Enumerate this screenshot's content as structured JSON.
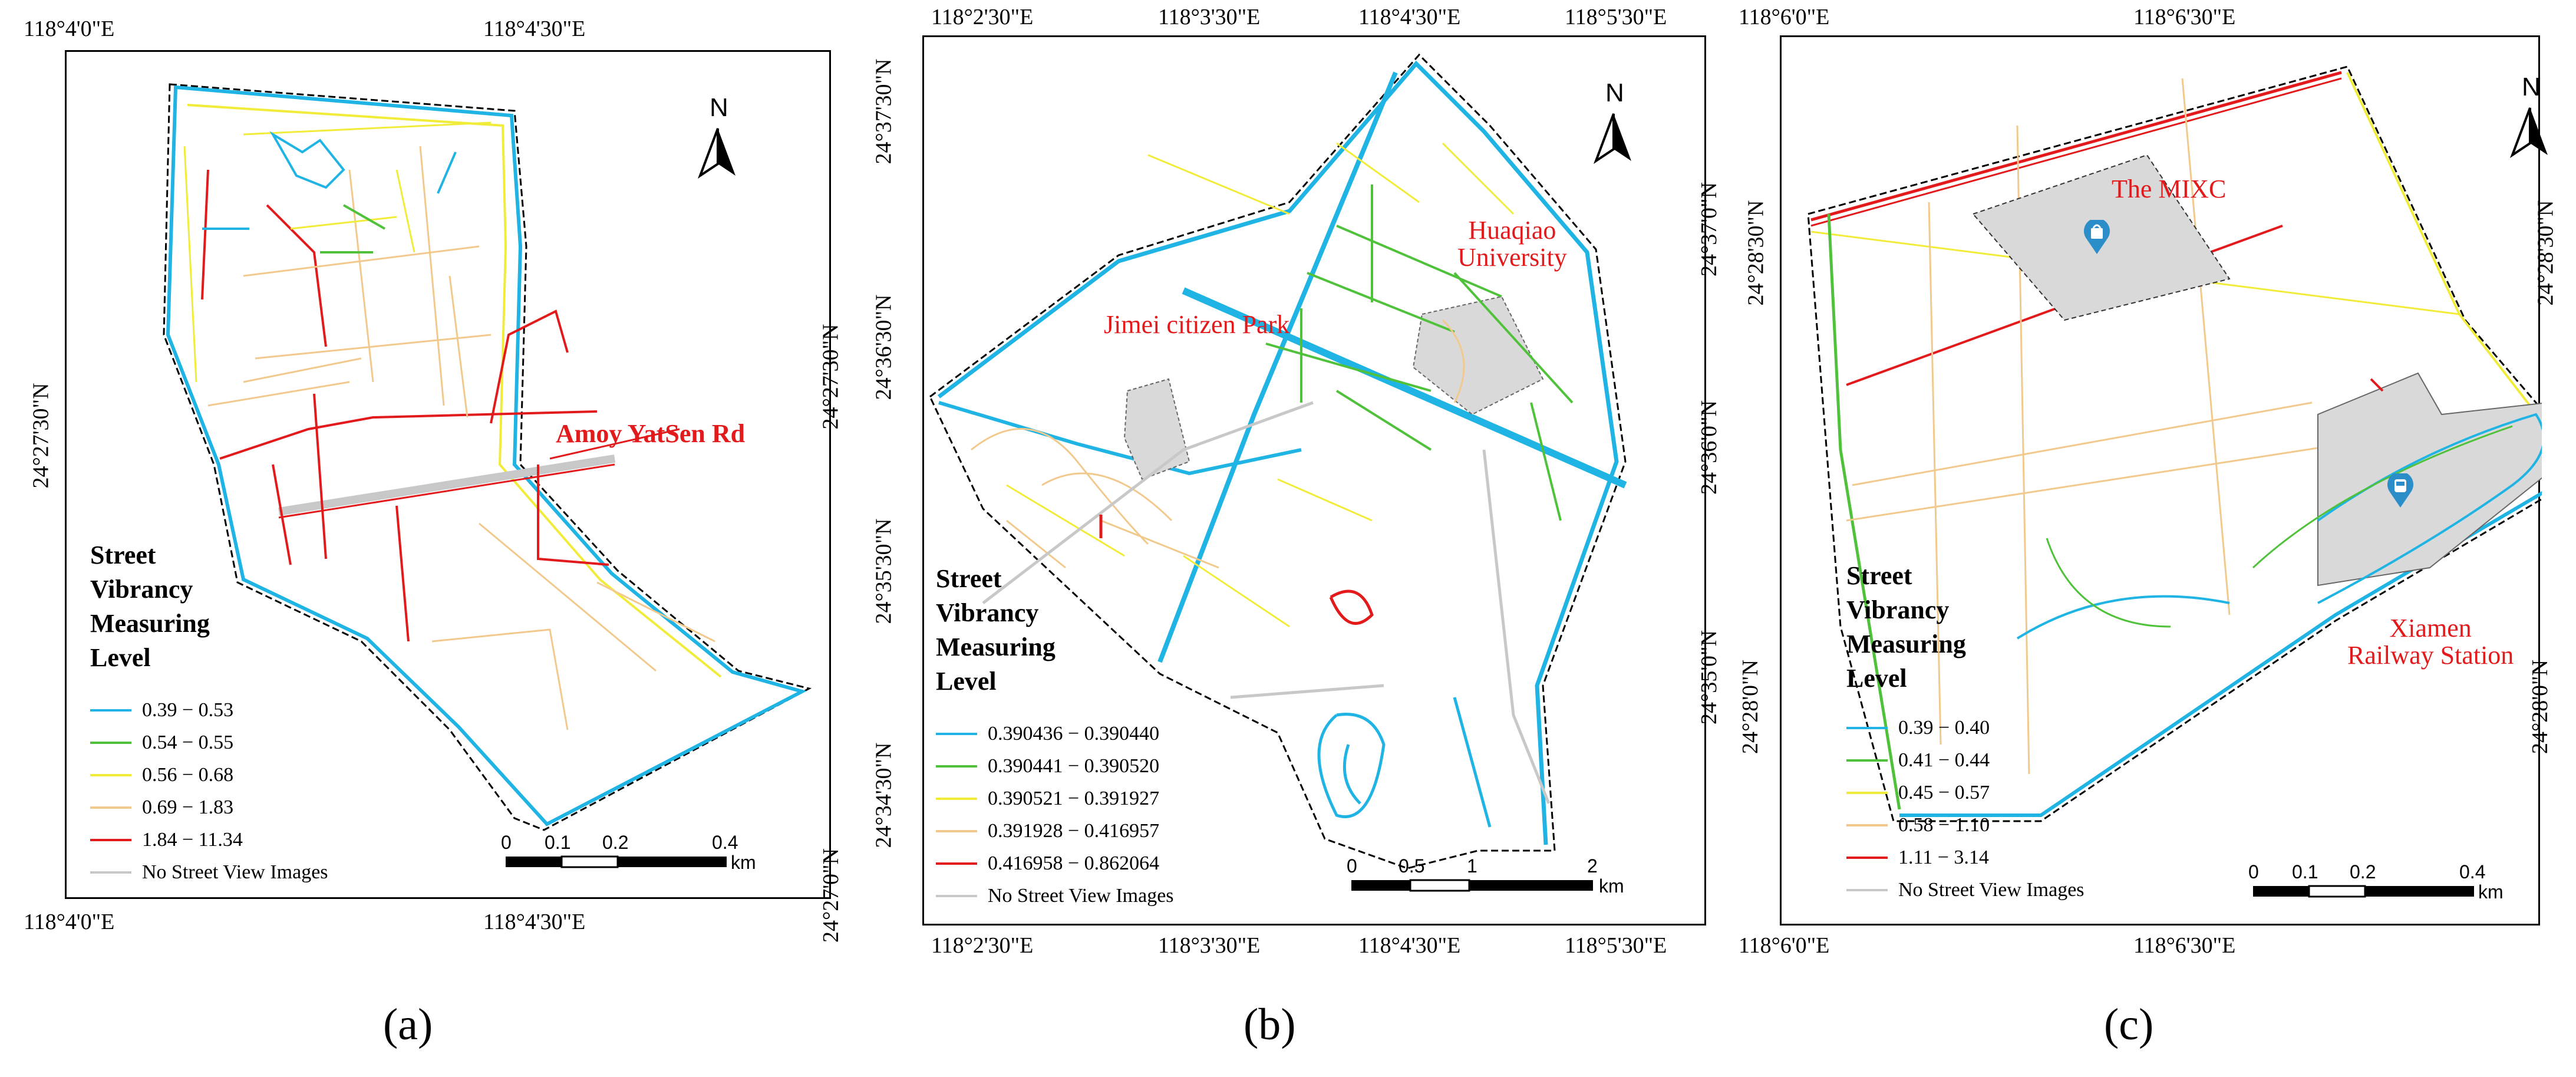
{
  "palette": {
    "c1": "#1fb4e4",
    "c2": "#4fc13a",
    "c3": "#f1ec3a",
    "c4": "#f2c98d",
    "c5": "#e31a1c",
    "none": "#c8c8c8",
    "poi_fill": "#d9d9d9",
    "annotation": "#e31a1c",
    "marker": "#2b8ec9"
  },
  "panels": [
    {
      "id": "a",
      "caption": "(a)",
      "coords": {
        "top": [
          "118°4'0\"E",
          "118°4'30\"E"
        ],
        "bottom": [
          "118°4'0\"E",
          "118°4'30\"E"
        ],
        "left": [
          "24°27'30\"N"
        ],
        "right": [
          "24°27'30\"N",
          "24°27'0\"N"
        ]
      },
      "legend": {
        "title": "Street\nVibrancy\nMeasuring\nLevel",
        "items": [
          {
            "label": "0.39 − 0.53",
            "color": "#1fb4e4"
          },
          {
            "label": "0.54 − 0.55",
            "color": "#4fc13a"
          },
          {
            "label": "0.56 − 0.68",
            "color": "#f1ec3a"
          },
          {
            "label": "0.69 − 1.83",
            "color": "#f2c98d"
          },
          {
            "label": "1.84 − 11.34",
            "color": "#e31a1c"
          },
          {
            "label": "No Street View Images",
            "color": "#c8c8c8"
          }
        ]
      },
      "north": "N",
      "scale": {
        "ticks": [
          "0",
          "0.1",
          "0.2",
          "0.4"
        ],
        "unit": ""
      },
      "annotations": [
        "Amoy YatSen Rd"
      ]
    },
    {
      "id": "b",
      "caption": "(b)",
      "coords": {
        "top": [
          "118°2'30\"E",
          "118°3'30\"E",
          "118°4'30\"E",
          "118°5'30\"E"
        ],
        "bottom": [
          "118°2'30\"E",
          "118°3'30\"E",
          "118°4'30\"E",
          "118°5'30\"E"
        ],
        "left": [
          "24°37'30\"N",
          "24°36'30\"N",
          "24°35'30\"N",
          "24°34'30\"N"
        ],
        "right": [
          "24°37'0\"N",
          "24°36'0\"N",
          "24°35'0\"N"
        ]
      },
      "legend": {
        "title": "Street\nVibrancy\nMeasuring\nLevel",
        "items": [
          {
            "label": "0.390436 − 0.390440",
            "color": "#1fb4e4"
          },
          {
            "label": "0.390441 − 0.390520",
            "color": "#4fc13a"
          },
          {
            "label": "0.390521 − 0.391927",
            "color": "#f1ec3a"
          },
          {
            "label": "0.391928 − 0.416957",
            "color": "#f2c98d"
          },
          {
            "label": "0.416958 − 0.862064",
            "color": "#e31a1c"
          },
          {
            "label": "No Street View Images",
            "color": "#c8c8c8"
          }
        ]
      },
      "north": "N",
      "scale": {
        "ticks": [
          "0",
          "0.5",
          "1",
          "2"
        ],
        "unit": "km"
      },
      "annotations": [
        "Huaqiao\nUniversity",
        "Jimei citizen Park"
      ]
    },
    {
      "id": "c",
      "caption": "(c)",
      "coords": {
        "top": [
          "118°6'0\"E",
          "118°6'30\"E"
        ],
        "bottom": [
          "118°6'0\"E",
          "118°6'30\"E"
        ],
        "left": [
          "24°28'30\"N",
          "24°28'0\"N"
        ],
        "right": [
          "24°28'30\"N",
          "24°28'0\"N"
        ]
      },
      "legend": {
        "title": "Street\nVibrancy\nMeasuring\nLevel",
        "items": [
          {
            "label": "0.39 − 0.40",
            "color": "#1fb4e4"
          },
          {
            "label": "0.41 − 0.44",
            "color": "#4fc13a"
          },
          {
            "label": "0.45 − 0.57",
            "color": "#f1ec3a"
          },
          {
            "label": "0.58 − 1.10",
            "color": "#f2c98d"
          },
          {
            "label": "1.11 − 3.14",
            "color": "#e31a1c"
          },
          {
            "label": "No Street View Images",
            "color": "#c8c8c8"
          }
        ]
      },
      "north": "N",
      "scale": {
        "ticks": [
          "0",
          "0.1",
          "0.2",
          "0.4"
        ],
        "unit": "km"
      },
      "annotations": [
        "The MIXC",
        "Xiamen\nRailway Station"
      ],
      "icons": [
        "shopping-bag-icon",
        "train-icon"
      ]
    }
  ],
  "_a_scale_km": "km"
}
